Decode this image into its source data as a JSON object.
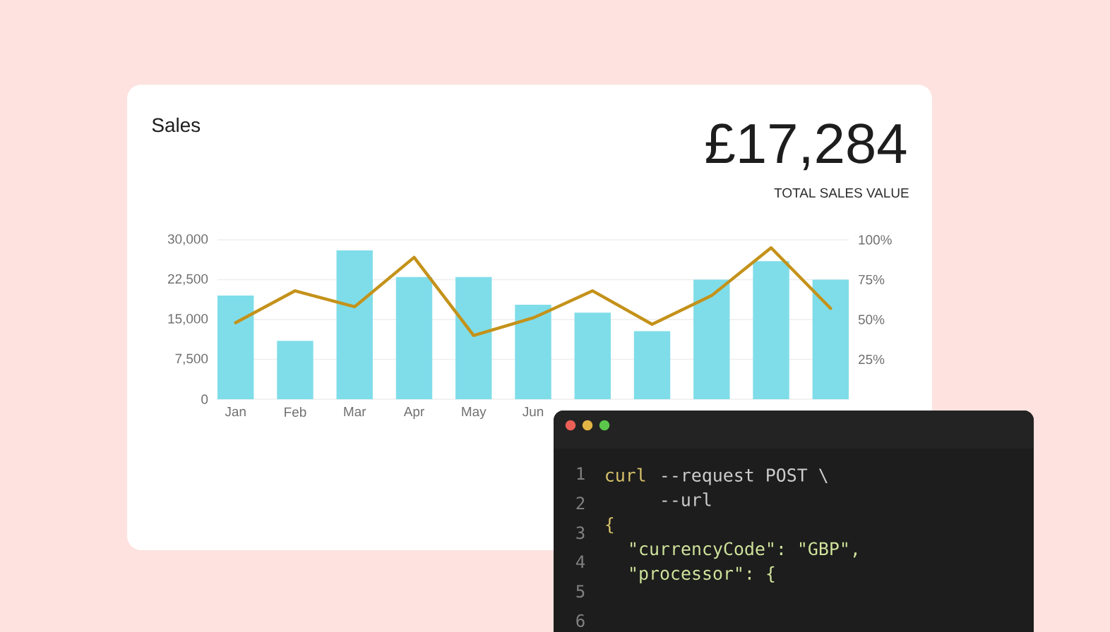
{
  "chart_data": {
    "type": "bar",
    "title": "Sales",
    "annotations": [
      "£17,284",
      "TOTAL SALES VALUE",
      "curl",
      "--request POST \\",
      "--url",
      "{",
      "\"currencyCode\": \"GBP\",",
      "\"processor\": {",
      "1",
      "2",
      "3",
      "4",
      "5",
      "6"
    ],
    "categories": [
      "Jan",
      "Feb",
      "Mar",
      "Apr",
      "May",
      "Jun",
      null,
      null,
      null,
      null,
      null
    ],
    "ylim": [
      0,
      30000
    ],
    "yticks": [
      0,
      {
        "value": 7500,
        "label": "7,500"
      },
      {
        "value": 15000,
        "label": "15,000"
      },
      {
        "value": 22500,
        "label": "22,500"
      },
      {
        "value": 30000,
        "label": "30,000"
      }
    ],
    "y2lim": [
      0,
      100
    ],
    "y2ticks": [
      {
        "value": 25,
        "label": "25%"
      },
      {
        "value": 50,
        "label": "50%"
      },
      {
        "value": 75,
        "label": "75%"
      },
      {
        "value": 100,
        "label": "100%"
      }
    ],
    "grid": "y",
    "series": [
      {
        "color": "#7fdde9",
        "values": [
          19500,
          11000,
          28000,
          23000,
          23000,
          17800,
          16300,
          12800,
          22500,
          26000,
          22500
        ]
      },
      {
        "type": "line",
        "axis": "y2",
        "color": "#c4921a",
        "values": [
          48,
          68,
          58,
          89,
          40,
          51,
          68,
          47,
          65,
          95,
          57
        ]
      }
    ]
  }
}
